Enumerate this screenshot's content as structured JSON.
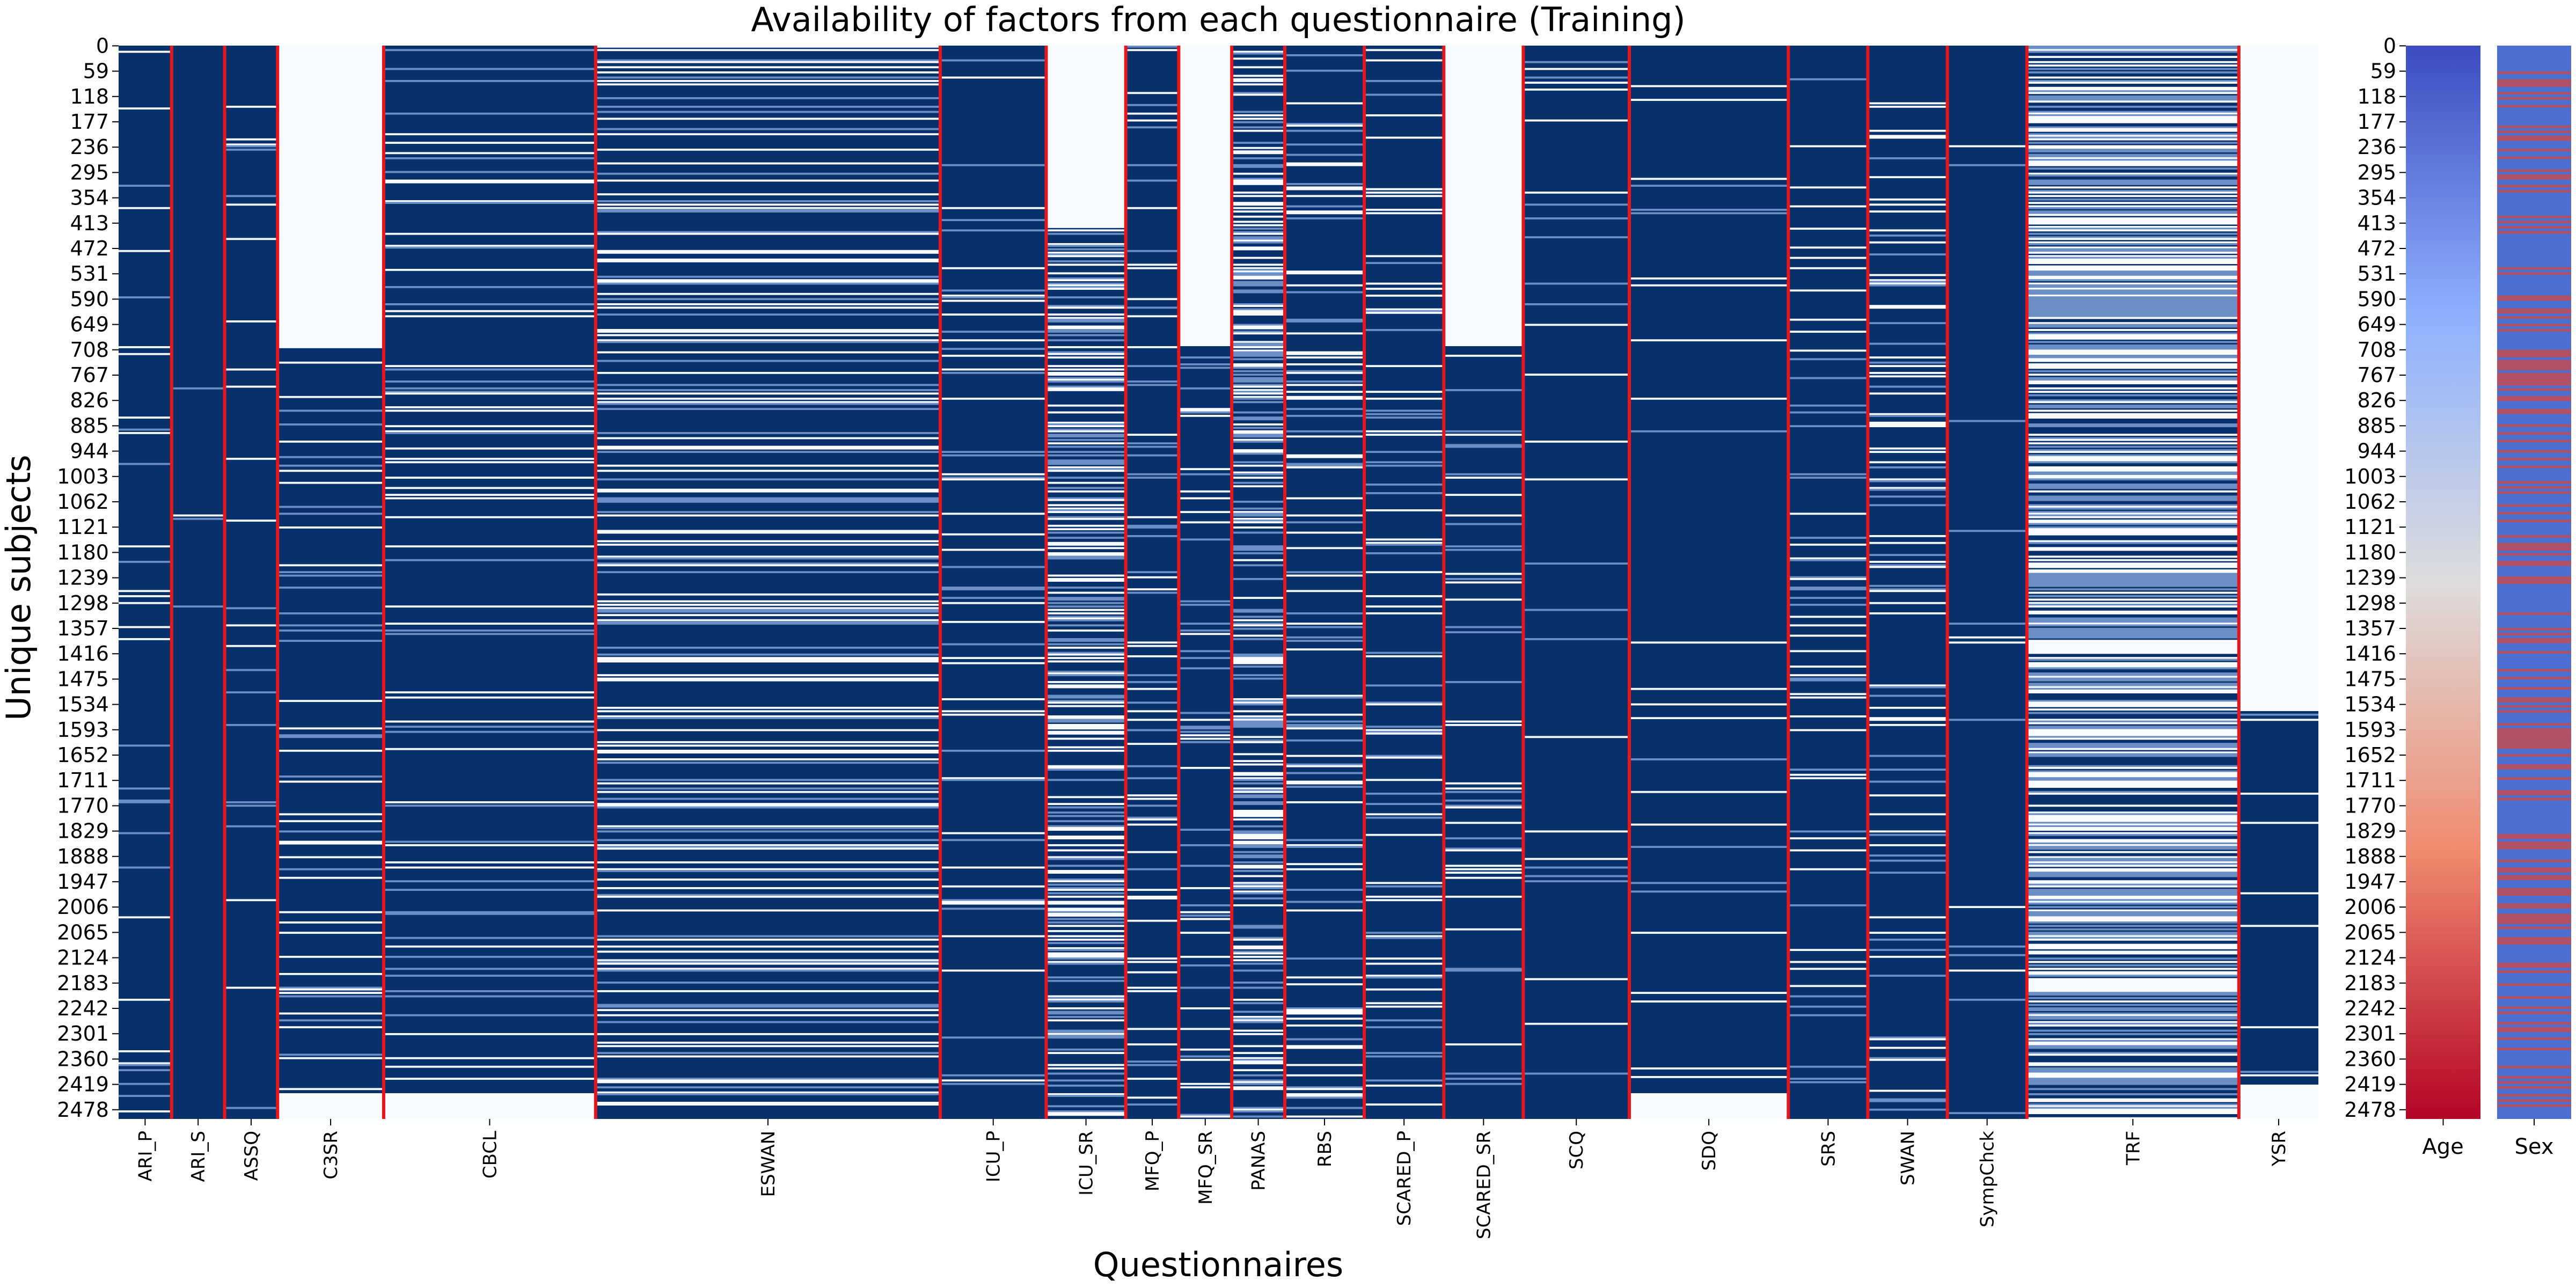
{
  "chart_data": [
    {
      "type": "heatmap",
      "title": "Availability of factors from each questionnaire (Training)",
      "xlabel": "Questionnaires",
      "ylabel": "Unique subjects",
      "n_subjects": 2500,
      "y_tick_labels": [
        "0",
        "59",
        "118",
        "177",
        "236",
        "295",
        "354",
        "413",
        "472",
        "531",
        "590",
        "649",
        "708",
        "767",
        "826",
        "885",
        "944",
        "1003",
        "1062",
        "1121",
        "1180",
        "1239",
        "1298",
        "1357",
        "1416",
        "1475",
        "1534",
        "1593",
        "1652",
        "1711",
        "1770",
        "1829",
        "1888",
        "1947",
        "2006",
        "2065",
        "2124",
        "2183",
        "2242",
        "2301",
        "2360",
        "2419",
        "2478"
      ],
      "colors": {
        "available": "#08306b",
        "missing": "#f7fbff",
        "partial": "#6b8fc4",
        "separator": "#e8161b"
      },
      "questionnaires": [
        {
          "name": "ARI_P",
          "n_factors": 8,
          "coverage": 0.95,
          "missing_rows": []
        },
        {
          "name": "ARI_S",
          "n_factors": 8,
          "coverage": 0.97,
          "missing_rows": []
        },
        {
          "name": "ASSQ",
          "n_factors": 8,
          "coverage": 0.96,
          "missing_rows": []
        },
        {
          "name": "C3SR",
          "n_factors": 16,
          "coverage": 0.93,
          "missing_rows": [
            [
              0,
              700
            ],
            [
              2440,
              2500
            ]
          ]
        },
        {
          "name": "CBCL",
          "n_factors": 32,
          "coverage": 0.9,
          "missing_rows": [
            [
              2440,
              2500
            ]
          ]
        },
        {
          "name": "ESWAN",
          "n_factors": 52,
          "coverage": 0.75,
          "missing_rows": []
        },
        {
          "name": "ICU_P",
          "n_factors": 16,
          "coverage": 0.9,
          "missing_rows": []
        },
        {
          "name": "ICU_SR",
          "n_factors": 12,
          "coverage": 0.6,
          "missing_rows": [
            [
              0,
              420
            ]
          ]
        },
        {
          "name": "MFQ_P",
          "n_factors": 8,
          "coverage": 0.9,
          "missing_rows": []
        },
        {
          "name": "MFQ_SR",
          "n_factors": 8,
          "coverage": 0.92,
          "missing_rows": [
            [
              0,
              700
            ]
          ]
        },
        {
          "name": "PANAS",
          "n_factors": 8,
          "coverage": 0.55,
          "missing_rows": []
        },
        {
          "name": "RBS",
          "n_factors": 12,
          "coverage": 0.82,
          "missing_rows": []
        },
        {
          "name": "SCARED_P",
          "n_factors": 12,
          "coverage": 0.88,
          "missing_rows": []
        },
        {
          "name": "SCARED_SR",
          "n_factors": 12,
          "coverage": 0.9,
          "missing_rows": [
            [
              0,
              700
            ]
          ]
        },
        {
          "name": "SCQ",
          "n_factors": 16,
          "coverage": 0.96,
          "missing_rows": []
        },
        {
          "name": "SDQ",
          "n_factors": 24,
          "coverage": 0.95,
          "missing_rows": [
            [
              2440,
              2500
            ]
          ]
        },
        {
          "name": "SRS",
          "n_factors": 12,
          "coverage": 0.9,
          "missing_rows": []
        },
        {
          "name": "SWAN",
          "n_factors": 12,
          "coverage": 0.85,
          "missing_rows": []
        },
        {
          "name": "SympChck",
          "n_factors": 12,
          "coverage": 0.97,
          "missing_rows": []
        },
        {
          "name": "TRF",
          "n_factors": 32,
          "coverage": 0.3,
          "missing_rows": []
        },
        {
          "name": "YSR",
          "n_factors": 12,
          "coverage": 0.97,
          "missing_rows": [
            [
              0,
              1550
            ],
            [
              2420,
              2500
            ]
          ]
        }
      ]
    },
    {
      "type": "heatmap",
      "xlabel": "Age",
      "colormap": [
        "#b40426",
        "#f08b6f",
        "#dddcdc",
        "#8db0fe",
        "#3b4cc0"
      ],
      "trend": "increasing-down"
    },
    {
      "type": "heatmap",
      "xlabel": "Sex",
      "colors": [
        "#4a6fd0",
        "#d6473f"
      ],
      "female_fraction": 0.35
    }
  ]
}
